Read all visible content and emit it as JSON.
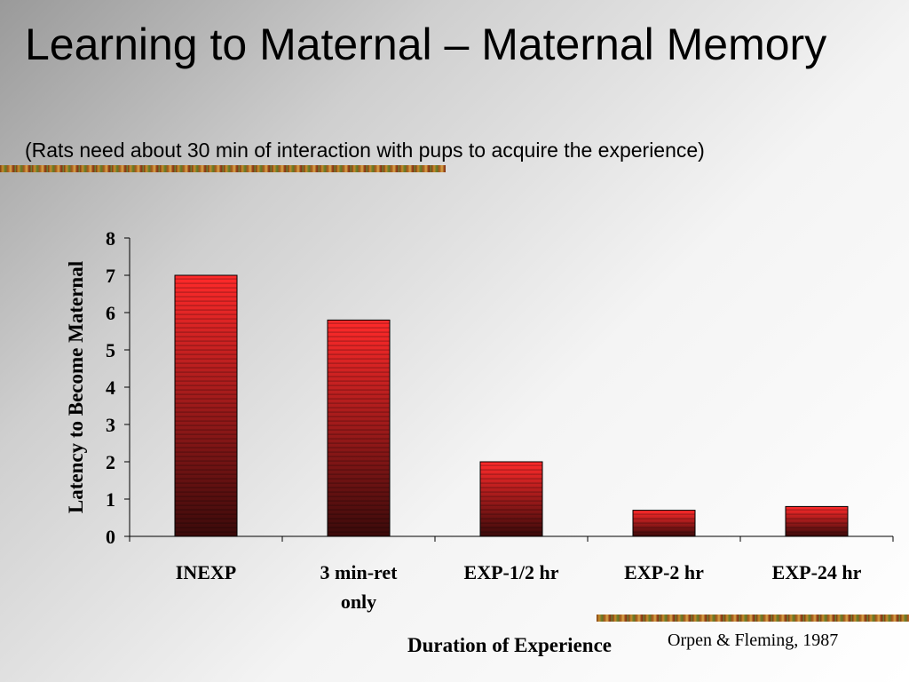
{
  "slide": {
    "title": "Learning to Maternal – Maternal Memory",
    "subtitle": "(Rats need about 30 min of interaction with pups to acquire the experience)",
    "credit": "Orpen & Fleming, 1987"
  },
  "chart_data": {
    "type": "bar",
    "categories": [
      [
        "INEXP"
      ],
      [
        "3 min-ret",
        "only"
      ],
      [
        "EXP-1/2 hr"
      ],
      [
        "EXP-2 hr"
      ],
      [
        "EXP-24 hr"
      ]
    ],
    "values": [
      7,
      5.8,
      2,
      0.7,
      0.8
    ],
    "xlabel": "Duration of Experience",
    "ylabel": "Latency to Become Maternal",
    "ylim": [
      0,
      8
    ],
    "yticks": [
      "0",
      "1",
      "2",
      "3",
      "4",
      "5",
      "6",
      "7",
      "8"
    ],
    "grid": false,
    "colors": {
      "bar_top": "#ff2a2a",
      "bar_bottom": "#3a0a0a",
      "stripe": "#000000",
      "axis": "#000000"
    }
  }
}
